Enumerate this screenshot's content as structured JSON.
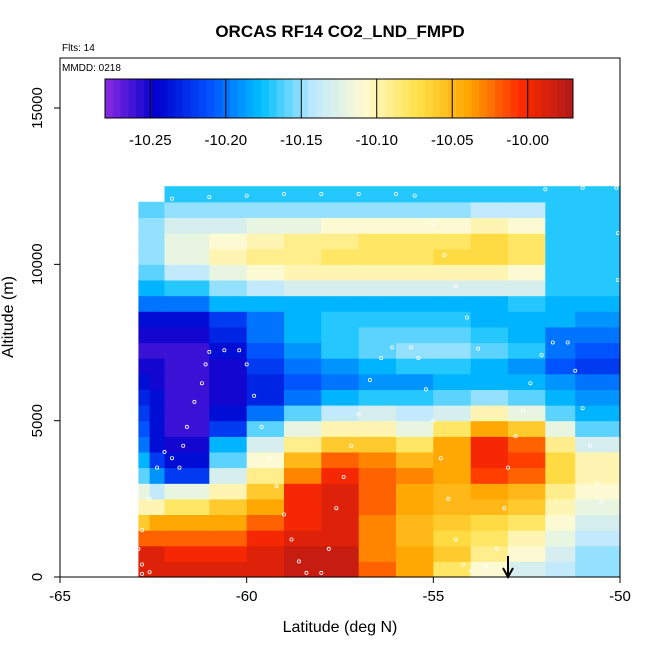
{
  "chart_data": {
    "type": "heatmap",
    "title": "ORCAS RF14 CO2_LND_FMPD",
    "annotations": [
      "Flts: 14",
      "MMDD: 0218"
    ],
    "xlabel": "Latitude (deg N)",
    "ylabel": "Altitude (m)",
    "xlim": [
      -65,
      -50
    ],
    "ylim": [
      0,
      16600
    ],
    "x_ticks": [
      -65,
      -60,
      -55,
      -50
    ],
    "y_ticks": [
      0,
      5000,
      10000,
      15000
    ],
    "colorbar": {
      "range": [
        -10.28,
        -9.97
      ],
      "ticks": [
        -10.25,
        -10.2,
        -10.15,
        -10.1,
        -10.05,
        -10.0
      ],
      "tick_labels": [
        "-10.25",
        "-10.20",
        "-10.15",
        "-10.10",
        "-10.05",
        "-10.00"
      ],
      "colors": [
        "#8a2be2",
        "#0000cd",
        "#0050ff",
        "#00bfff",
        "#bfe9ff",
        "#fffbd0",
        "#ffe14a",
        "#ffa500",
        "#ff2a00",
        "#b01818"
      ]
    },
    "curtain": {
      "x_edges": [
        -62.9,
        -62.6,
        -62.2,
        -61.0,
        -60.0,
        -59.0,
        -58.0,
        -57.0,
        -56.0,
        -55.0,
        -54.0,
        -53.0,
        -52.0,
        -51.2,
        -50.0
      ],
      "y_edges": [
        0,
        500,
        1000,
        1500,
        2000,
        2500,
        3000,
        3500,
        4000,
        4500,
        5000,
        5500,
        6000,
        6500,
        7000,
        7500,
        8000,
        8500,
        9000,
        9500,
        10000,
        10500,
        11000,
        11500,
        12000,
        12500
      ],
      "values": [
        [
          -9.99,
          -9.99,
          -9.99,
          -9.99,
          -9.99,
          -9.98,
          -9.98,
          -10.02,
          -10.04,
          -10.08,
          -10.11,
          -10.13,
          -10.14,
          -10.15
        ],
        [
          -9.99,
          -9.99,
          -10.0,
          -10.0,
          -9.99,
          -9.98,
          -9.98,
          -10.03,
          -10.04,
          -10.06,
          -10.09,
          -10.11,
          -10.13,
          -10.15
        ],
        [
          -10.02,
          -10.02,
          -10.02,
          -10.02,
          -10.0,
          -9.99,
          -9.99,
          -10.03,
          -10.05,
          -10.07,
          -10.08,
          -10.1,
          -10.12,
          -10.14
        ],
        [
          -10.06,
          -10.04,
          -10.04,
          -10.04,
          -10.02,
          -10.0,
          -9.99,
          -10.03,
          -10.05,
          -10.06,
          -10.07,
          -10.08,
          -10.11,
          -10.13
        ],
        [
          -10.1,
          -10.1,
          -10.08,
          -10.06,
          -10.04,
          -10.0,
          -9.99,
          -10.02,
          -10.04,
          -10.05,
          -10.05,
          -10.06,
          -10.1,
          -10.12
        ],
        [
          -10.12,
          -10.14,
          -10.12,
          -10.1,
          -10.06,
          -10.0,
          -9.99,
          -10.02,
          -10.04,
          -10.05,
          -10.04,
          -10.05,
          -10.09,
          -10.11
        ],
        [
          -10.16,
          -10.19,
          -10.22,
          -10.13,
          -10.09,
          -10.03,
          -10.0,
          -10.02,
          -10.03,
          -10.04,
          -10.01,
          -10.02,
          -10.07,
          -10.1
        ],
        [
          -10.18,
          -10.22,
          -10.24,
          -10.16,
          -10.11,
          -10.05,
          -10.02,
          -10.03,
          -10.05,
          -10.04,
          -10.0,
          -10.01,
          -10.07,
          -10.1
        ],
        [
          -10.2,
          -10.24,
          -10.25,
          -10.18,
          -10.13,
          -10.09,
          -10.06,
          -10.06,
          -10.08,
          -10.04,
          -10.0,
          -10.02,
          -10.09,
          -10.13
        ],
        [
          -10.21,
          -10.24,
          -10.26,
          -10.22,
          -10.16,
          -10.12,
          -10.1,
          -10.1,
          -10.12,
          -10.08,
          -10.04,
          -10.06,
          -10.12,
          -10.16
        ],
        [
          -10.22,
          -10.24,
          -10.26,
          -10.24,
          -10.2,
          -10.16,
          -10.14,
          -10.13,
          -10.14,
          -10.13,
          -10.1,
          -10.12,
          -10.16,
          -10.18
        ],
        [
          -10.23,
          -10.24,
          -10.26,
          -10.25,
          -10.23,
          -10.2,
          -10.18,
          -10.17,
          -10.17,
          -10.16,
          -10.15,
          -10.16,
          -10.18,
          -10.19
        ],
        [
          -10.24,
          -10.25,
          -10.26,
          -10.25,
          -10.23,
          -10.21,
          -10.2,
          -10.19,
          -10.19,
          -10.18,
          -10.18,
          -10.18,
          -10.19,
          -10.2
        ],
        [
          -10.25,
          -10.25,
          -10.26,
          -10.25,
          -10.22,
          -10.2,
          -10.19,
          -10.18,
          -10.17,
          -10.17,
          -10.18,
          -10.19,
          -10.21,
          -10.22
        ],
        [
          -10.26,
          -10.26,
          -10.26,
          -10.24,
          -10.21,
          -10.19,
          -10.17,
          -10.16,
          -10.15,
          -10.15,
          -10.16,
          -10.17,
          -10.2,
          -10.21
        ],
        [
          -10.25,
          -10.25,
          -10.25,
          -10.23,
          -10.2,
          -10.18,
          -10.17,
          -10.16,
          -10.16,
          -10.16,
          -10.17,
          -10.18,
          -10.2,
          -10.2
        ],
        [
          -10.24,
          -10.24,
          -10.24,
          -10.22,
          -10.2,
          -10.18,
          -10.17,
          -10.17,
          -10.17,
          -10.17,
          -10.18,
          -10.18,
          -10.18,
          -10.19
        ],
        [
          -10.2,
          -10.2,
          -10.2,
          -10.18,
          -10.18,
          -10.18,
          -10.18,
          -10.18,
          -10.18,
          -10.18,
          -10.18,
          -10.17,
          -10.18,
          -10.18
        ],
        [
          -10.18,
          -10.18,
          -10.17,
          -10.15,
          -10.14,
          -10.13,
          -10.13,
          -10.13,
          -10.13,
          -10.13,
          -10.13,
          -10.13,
          -10.17,
          -10.17
        ],
        [
          -10.16,
          -10.16,
          -10.14,
          -10.12,
          -10.11,
          -10.1,
          -10.1,
          -10.1,
          -10.1,
          -10.1,
          -10.1,
          -10.11,
          -10.17,
          -10.17
        ],
        [
          -10.15,
          -10.15,
          -10.12,
          -10.1,
          -10.09,
          -10.09,
          -10.08,
          -10.08,
          -10.08,
          -10.07,
          -10.07,
          -10.08,
          -10.17,
          -10.17
        ],
        [
          -10.15,
          -10.15,
          -10.12,
          -10.11,
          -10.1,
          -10.09,
          -10.09,
          -10.08,
          -10.08,
          -10.08,
          -10.07,
          -10.08,
          -10.17,
          -10.17
        ],
        [
          -10.15,
          -10.15,
          -10.13,
          -10.13,
          -10.12,
          -10.12,
          -10.11,
          -10.11,
          -10.11,
          -10.11,
          -10.1,
          -10.11,
          -10.17,
          -10.17
        ],
        [
          -10.16,
          -10.16,
          -10.15,
          -10.15,
          -10.15,
          -10.15,
          -10.15,
          -10.15,
          -10.15,
          -10.15,
          -10.14,
          -10.14,
          -10.17,
          -10.17
        ],
        [
          null,
          null,
          -10.17,
          -10.17,
          -10.17,
          -10.17,
          -10.17,
          -10.17,
          -10.17,
          -10.17,
          -10.17,
          -10.17,
          -10.17,
          -10.17
        ]
      ]
    },
    "flight_track": [
      [
        -62.8,
        100
      ],
      [
        -62.6,
        150
      ],
      [
        -62.8,
        400
      ],
      [
        -62.9,
        900
      ],
      [
        -62.8,
        1500
      ],
      [
        -62.6,
        2500
      ],
      [
        -62.4,
        3500
      ],
      [
        -62.2,
        4000
      ],
      [
        -62.0,
        3800
      ],
      [
        -61.8,
        3500
      ],
      [
        -61.7,
        4200
      ],
      [
        -61.6,
        4800
      ],
      [
        -61.4,
        5600
      ],
      [
        -61.2,
        6200
      ],
      [
        -61.1,
        6800
      ],
      [
        -61.0,
        7200
      ],
      [
        -60.6,
        7250
      ],
      [
        -60.2,
        7250
      ],
      [
        -60.0,
        6800
      ],
      [
        -59.8,
        5800
      ],
      [
        -59.6,
        4800
      ],
      [
        -59.4,
        3800
      ],
      [
        -59.2,
        2900
      ],
      [
        -59.0,
        2000
      ],
      [
        -58.8,
        1200
      ],
      [
        -58.6,
        500
      ],
      [
        -58.4,
        130
      ],
      [
        -58.0,
        130
      ],
      [
        -57.8,
        900
      ],
      [
        -57.6,
        2200
      ],
      [
        -57.4,
        3200
      ],
      [
        -57.2,
        4200
      ],
      [
        -57.0,
        5200
      ],
      [
        -56.7,
        6300
      ],
      [
        -56.4,
        7000
      ],
      [
        -56.1,
        7350
      ],
      [
        -55.6,
        7350
      ],
      [
        -55.4,
        7000
      ],
      [
        -55.2,
        6000
      ],
      [
        -55.0,
        5000
      ],
      [
        -54.8,
        3800
      ],
      [
        -54.6,
        2500
      ],
      [
        -54.4,
        1200
      ],
      [
        -54.2,
        400
      ],
      [
        -54.0,
        200
      ],
      [
        -53.6,
        350
      ],
      [
        -53.3,
        900
      ],
      [
        -53.1,
        2200
      ],
      [
        -53.0,
        3500
      ],
      [
        -52.8,
        4500
      ],
      [
        -52.6,
        5300
      ],
      [
        -52.4,
        6200
      ],
      [
        -52.1,
        7100
      ],
      [
        -51.8,
        7500
      ],
      [
        -51.4,
        7500
      ],
      [
        -51.2,
        6600
      ],
      [
        -51.0,
        5400
      ],
      [
        -50.8,
        4200
      ],
      [
        -50.6,
        3000
      ],
      [
        -50.5,
        2400
      ],
      [
        -62.0,
        12100
      ],
      [
        -61.0,
        12150
      ],
      [
        -60.0,
        12200
      ],
      [
        -59.0,
        12250
      ],
      [
        -58.0,
        12250
      ],
      [
        -57.0,
        12250
      ],
      [
        -56.0,
        12250
      ],
      [
        -55.5,
        12200
      ],
      [
        -55.0,
        11300
      ],
      [
        -54.7,
        10300
      ],
      [
        -54.4,
        9300
      ],
      [
        -54.1,
        8300
      ],
      [
        -53.8,
        7300
      ],
      [
        -52.0,
        12400
      ],
      [
        -51.0,
        12450
      ],
      [
        -50.1,
        12450
      ],
      [
        -50.05,
        11000
      ],
      [
        -50.05,
        9500
      ]
    ],
    "arrow_latitude": -53.0
  }
}
